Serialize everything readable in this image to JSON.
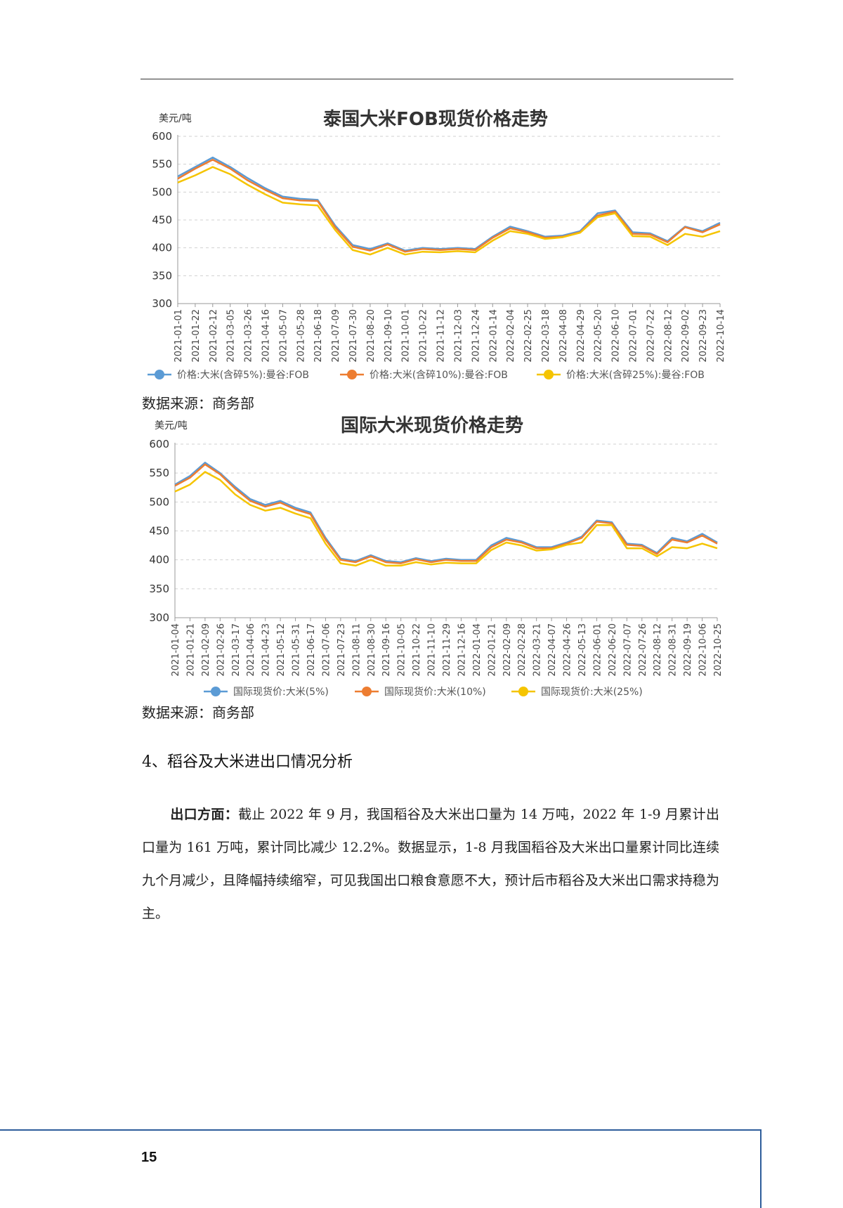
{
  "charts_source": "数据来源：商务部",
  "chart_data": [
    {
      "type": "line",
      "title": "泰国大米FOB现货价格走势",
      "ylabel": "美元/吨",
      "ylim": [
        300,
        600
      ],
      "yticks": [
        300,
        350,
        400,
        450,
        500,
        550,
        600
      ],
      "grid": true,
      "legend_position": "bottom",
      "x": [
        "2021-01-01",
        "2021-01-22",
        "2021-02-12",
        "2021-03-05",
        "2021-03-26",
        "2021-04-16",
        "2021-05-07",
        "2021-05-28",
        "2021-06-18",
        "2021-07-09",
        "2021-07-30",
        "2021-08-20",
        "2021-09-10",
        "2021-10-01",
        "2021-10-22",
        "2021-11-12",
        "2021-12-03",
        "2021-12-24",
        "2022-01-14",
        "2022-02-04",
        "2022-02-25",
        "2022-03-18",
        "2022-04-08",
        "2022-04-29",
        "2022-05-20",
        "2022-06-10",
        "2022-07-01",
        "2022-07-22",
        "2022-08-12",
        "2022-09-02",
        "2022-09-23",
        "2022-10-14"
      ],
      "series": [
        {
          "name": "价格:大米(含碎5%):曼谷:FOB",
          "color": "#5b9bd5",
          "values": [
            528,
            545,
            562,
            545,
            525,
            507,
            492,
            488,
            486,
            440,
            405,
            398,
            408,
            395,
            400,
            398,
            400,
            398,
            420,
            438,
            430,
            420,
            422,
            430,
            462,
            467,
            428,
            426,
            412,
            438,
            430,
            445
          ]
        },
        {
          "name": "价格:大米(含碎10%):曼谷:FOB",
          "color": "#ed7d31",
          "values": [
            524,
            542,
            558,
            542,
            521,
            504,
            489,
            485,
            484,
            437,
            402,
            395,
            406,
            393,
            398,
            396,
            398,
            396,
            418,
            435,
            428,
            418,
            420,
            428,
            458,
            465,
            425,
            424,
            410,
            437,
            428,
            442
          ]
        },
        {
          "name": "价格:大米(含碎25%):曼谷:FOB",
          "color": "#f5c400",
          "values": [
            517,
            530,
            545,
            532,
            513,
            496,
            481,
            478,
            476,
            432,
            396,
            388,
            400,
            388,
            393,
            392,
            394,
            392,
            413,
            430,
            425,
            416,
            419,
            427,
            455,
            462,
            421,
            420,
            405,
            425,
            420,
            430
          ]
        }
      ]
    },
    {
      "type": "line",
      "title": "国际大米现货价格走势",
      "ylabel": "美元/吨",
      "ylim": [
        300,
        600
      ],
      "yticks": [
        300,
        350,
        400,
        450,
        500,
        550,
        600
      ],
      "grid": true,
      "legend_position": "bottom",
      "x": [
        "2021-01-04",
        "2021-01-21",
        "2021-02-09",
        "2021-02-26",
        "2021-03-17",
        "2021-04-06",
        "2021-04-23",
        "2021-05-12",
        "2021-05-31",
        "2021-06-17",
        "2021-07-06",
        "2021-07-23",
        "2021-08-11",
        "2021-08-30",
        "2021-09-16",
        "2021-10-05",
        "2021-10-22",
        "2021-11-10",
        "2021-11-29",
        "2021-12-16",
        "2022-01-04",
        "2022-01-21",
        "2022-02-09",
        "2022-02-28",
        "2022-03-21",
        "2022-04-07",
        "2022-04-26",
        "2022-05-13",
        "2022-06-01",
        "2022-06-20",
        "2022-07-07",
        "2022-07-26",
        "2022-08-12",
        "2022-08-31",
        "2022-09-19",
        "2022-10-06",
        "2022-10-25"
      ],
      "series": [
        {
          "name": "国际现货价:大米(5%)",
          "color": "#5b9bd5",
          "values": [
            530,
            545,
            568,
            550,
            526,
            505,
            495,
            502,
            490,
            482,
            438,
            402,
            398,
            408,
            398,
            396,
            403,
            398,
            402,
            400,
            400,
            425,
            438,
            432,
            422,
            422,
            430,
            440,
            468,
            465,
            428,
            426,
            412,
            438,
            432,
            445,
            430
          ]
        },
        {
          "name": "国际现货价:大米(10%)",
          "color": "#ed7d31",
          "values": [
            528,
            542,
            565,
            548,
            523,
            502,
            492,
            499,
            487,
            479,
            435,
            400,
            396,
            406,
            396,
            394,
            401,
            396,
            400,
            398,
            398,
            422,
            435,
            430,
            420,
            420,
            428,
            438,
            466,
            463,
            426,
            424,
            410,
            435,
            430,
            442,
            428
          ]
        },
        {
          "name": "国际现货价:大米(25%)",
          "color": "#f5c400",
          "values": [
            518,
            530,
            552,
            538,
            513,
            495,
            485,
            490,
            480,
            472,
            428,
            394,
            390,
            400,
            390,
            390,
            396,
            392,
            395,
            394,
            394,
            417,
            430,
            425,
            416,
            418,
            426,
            430,
            460,
            460,
            420,
            420,
            406,
            422,
            420,
            428,
            420
          ]
        }
      ]
    }
  ],
  "section": {
    "heading": "4、稻谷及大米进出口情况分析",
    "paragraph_lead": "出口方面：",
    "paragraph_body": "截止 2022 年 9 月，我国稻谷及大米出口量为 14 万吨，2022 年 1-9 月累计出口量为 161 万吨，累计同比减少 12.2%。数据显示，1-8 月我国稻谷及大米出口量累计同比连续九个月减少，且降幅持续缩窄，可见我国出口粮食意愿不大，预计后市稻谷及大米出口需求持稳为主。"
  },
  "footer": {
    "page_number": "15",
    "frame_color": "#2e5d9b"
  }
}
